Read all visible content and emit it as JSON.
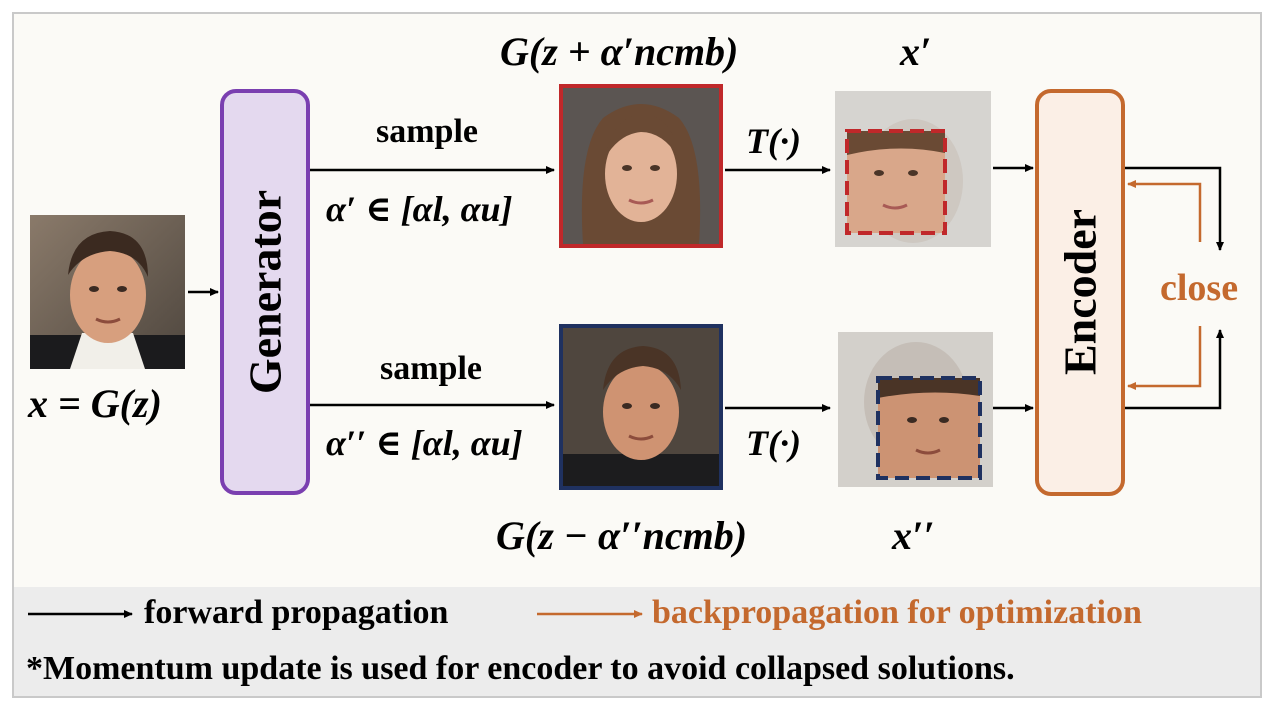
{
  "input_label": "x = G(z)",
  "generator_label": "Generator",
  "encoder_label": "Encoder",
  "top": {
    "sample_label": "sample",
    "alpha_range": "α′ ∈ [αl, αu]",
    "output_label": "G(z + α′ncmb)",
    "transform_label": "T(·)",
    "result_label": "x′"
  },
  "bottom": {
    "sample_label": "sample",
    "alpha_range": "α′′ ∈ [αl, αu]",
    "output_label": "G(z − α′′ncmb)",
    "transform_label": "T(·)",
    "result_label": "x′′"
  },
  "close_label": "close",
  "legend": {
    "forward": "forward propagation",
    "backward": "backpropagation for optimization",
    "note": "*Momentum update is used for encoder to avoid collapsed solutions."
  },
  "colors": {
    "generator_fill": "#e4d9ef",
    "generator_border": "#7a3fb0",
    "encoder_fill": "#fbefe6",
    "encoder_border": "#c4692e",
    "positive_frame": "#c0282a",
    "negative_frame": "#1f3160",
    "backprop_arrow": "#c4692e",
    "forward_arrow": "#000000"
  }
}
